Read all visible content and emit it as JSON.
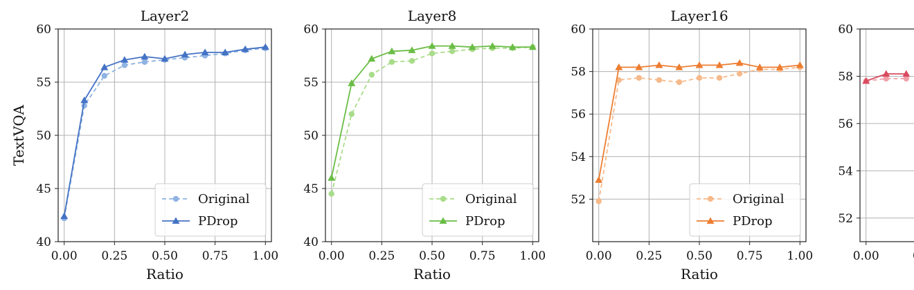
{
  "chart_data": [
    {
      "type": "line",
      "title": "Layer2",
      "xlabel": "Ratio",
      "ylabel": "TextVQA",
      "xlim": [
        -0.03,
        1.03
      ],
      "ylim": [
        40,
        60
      ],
      "xticks": [
        "0.00",
        "0.25",
        "0.50",
        "0.75",
        "1.00"
      ],
      "yticks": [
        "40",
        "45",
        "50",
        "55",
        "60"
      ],
      "grid": true,
      "legend_position": "bottom-right",
      "x": [
        0.0,
        0.1,
        0.2,
        0.3,
        0.4,
        0.5,
        0.6,
        0.7,
        0.8,
        0.9,
        1.0
      ],
      "series": [
        {
          "name": "Original",
          "color": "#8fb3e3",
          "style": "dashed",
          "marker": "circle",
          "values": [
            42.2,
            52.8,
            55.6,
            56.6,
            56.9,
            57.1,
            57.3,
            57.5,
            57.7,
            58.0,
            58.2
          ]
        },
        {
          "name": "PDrop",
          "color": "#4472c4",
          "style": "solid",
          "marker": "triangle",
          "values": [
            42.4,
            53.3,
            56.4,
            57.1,
            57.4,
            57.2,
            57.6,
            57.8,
            57.8,
            58.1,
            58.3
          ]
        }
      ]
    },
    {
      "type": "line",
      "title": "Layer8",
      "xlabel": "Ratio",
      "ylabel": "",
      "xlim": [
        -0.03,
        1.03
      ],
      "ylim": [
        40,
        60
      ],
      "xticks": [
        "0.00",
        "0.25",
        "0.50",
        "0.75",
        "1.00"
      ],
      "yticks": [
        "40",
        "45",
        "50",
        "55",
        "60"
      ],
      "grid": true,
      "legend_position": "bottom-right",
      "x": [
        0.0,
        0.1,
        0.2,
        0.3,
        0.4,
        0.5,
        0.6,
        0.7,
        0.8,
        0.9,
        1.0
      ],
      "series": [
        {
          "name": "Original",
          "color": "#a9dc8a",
          "style": "dashed",
          "marker": "circle",
          "values": [
            44.5,
            52.0,
            55.7,
            56.9,
            57.0,
            57.7,
            57.9,
            58.1,
            58.2,
            58.2,
            58.3
          ]
        },
        {
          "name": "PDrop",
          "color": "#6abd45",
          "style": "solid",
          "marker": "triangle",
          "values": [
            46.0,
            54.9,
            57.2,
            57.9,
            58.0,
            58.4,
            58.4,
            58.3,
            58.4,
            58.3,
            58.3
          ]
        }
      ]
    },
    {
      "type": "line",
      "title": "Layer16",
      "xlabel": "Ratio",
      "ylabel": "",
      "xlim": [
        -0.03,
        1.03
      ],
      "ylim": [
        50,
        60
      ],
      "xticks": [
        "0.00",
        "0.25",
        "0.50",
        "0.75",
        "1.00"
      ],
      "yticks": [
        "52",
        "54",
        "56",
        "58",
        "60"
      ],
      "grid": true,
      "legend_position": "bottom-right",
      "x": [
        0.0,
        0.1,
        0.2,
        0.3,
        0.4,
        0.5,
        0.6,
        0.7,
        0.8,
        0.9,
        1.0
      ],
      "series": [
        {
          "name": "Original",
          "color": "#f6b98a",
          "style": "dashed",
          "marker": "circle",
          "values": [
            51.9,
            57.6,
            57.7,
            57.6,
            57.5,
            57.7,
            57.7,
            57.9,
            58.1,
            58.1,
            58.2
          ]
        },
        {
          "name": "PDrop",
          "color": "#ed7d31",
          "style": "solid",
          "marker": "triangle",
          "values": [
            52.9,
            58.2,
            58.2,
            58.3,
            58.2,
            58.3,
            58.3,
            58.4,
            58.2,
            58.2,
            58.3
          ]
        }
      ]
    },
    {
      "type": "line",
      "title": "",
      "xlabel": "",
      "ylabel": "",
      "xlim": [
        -0.03,
        1.03
      ],
      "ylim": [
        51,
        60
      ],
      "xticks": [
        "0.00",
        "0"
      ],
      "yticks": [
        "52",
        "54",
        "56",
        "58",
        "60"
      ],
      "grid": true,
      "x": [
        0.0,
        0.1,
        0.2
      ],
      "series": [
        {
          "name": "",
          "color": "#f0a0a8",
          "style": "dashed",
          "marker": "circle",
          "values": [
            57.8,
            57.9,
            57.9
          ]
        },
        {
          "name": "",
          "color": "#d94b5f",
          "style": "solid",
          "marker": "triangle",
          "values": [
            57.8,
            58.1,
            58.1
          ]
        }
      ]
    }
  ]
}
